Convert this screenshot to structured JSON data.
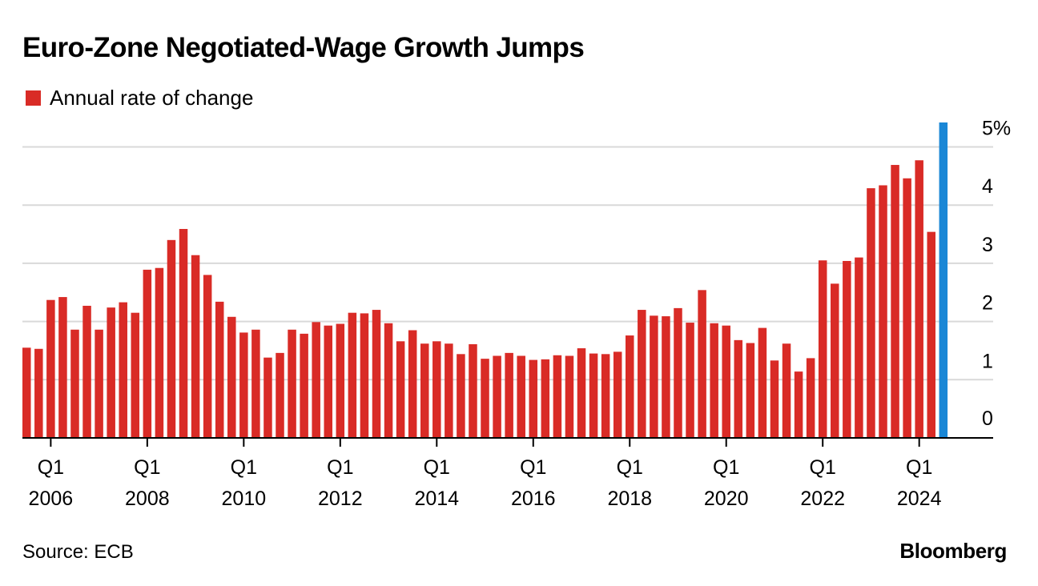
{
  "title": "Euro-Zone Negotiated-Wage Growth Jumps",
  "legend": {
    "label": "Annual rate of change",
    "color": "#d92b26"
  },
  "source": "Source: ECB",
  "brand": "Bloomberg",
  "colors": {
    "bar": "#d92b26",
    "highlight": "#1a87d6",
    "grid": "#d9d9d9",
    "axis": "#000000"
  },
  "chart_data": {
    "type": "bar",
    "title": "Euro-Zone Negotiated-Wage Growth Jumps",
    "xlabel": "",
    "ylabel": "",
    "ylim": [
      0,
      5
    ],
    "y_ticks": [
      {
        "value": 0,
        "label": "0"
      },
      {
        "value": 1,
        "label": "1"
      },
      {
        "value": 2,
        "label": "2"
      },
      {
        "value": 3,
        "label": "3"
      },
      {
        "value": 4,
        "label": "4"
      },
      {
        "value": 5,
        "label": "5%"
      }
    ],
    "grid": true,
    "first_period": "2005 Q3",
    "frequency": "quarterly",
    "x_ticks": [
      {
        "index": 2,
        "line1": "Q1",
        "line2": "2006"
      },
      {
        "index": 10,
        "line1": "Q1",
        "line2": "2008"
      },
      {
        "index": 18,
        "line1": "Q1",
        "line2": "2010"
      },
      {
        "index": 26,
        "line1": "Q1",
        "line2": "2012"
      },
      {
        "index": 34,
        "line1": "Q1",
        "line2": "2014"
      },
      {
        "index": 42,
        "line1": "Q1",
        "line2": "2016"
      },
      {
        "index": 50,
        "line1": "Q1",
        "line2": "2018"
      },
      {
        "index": 58,
        "line1": "Q1",
        "line2": "2020"
      },
      {
        "index": 66,
        "line1": "Q1",
        "line2": "2022"
      },
      {
        "index": 74,
        "line1": "Q1",
        "line2": "2024"
      }
    ],
    "series": [
      {
        "name": "Annual rate of change",
        "values": [
          1.55,
          1.53,
          2.37,
          2.42,
          1.86,
          2.27,
          1.86,
          2.24,
          2.33,
          2.15,
          2.89,
          2.92,
          3.4,
          3.59,
          3.14,
          2.8,
          2.34,
          2.08,
          1.81,
          1.86,
          1.38,
          1.46,
          1.86,
          1.79,
          1.99,
          1.93,
          1.96,
          2.15,
          2.14,
          2.2,
          1.97,
          1.66,
          1.85,
          1.62,
          1.66,
          1.62,
          1.44,
          1.61,
          1.36,
          1.41,
          1.46,
          1.41,
          1.34,
          1.35,
          1.42,
          1.41,
          1.54,
          1.45,
          1.44,
          1.48,
          1.76,
          2.2,
          2.1,
          2.09,
          2.23,
          1.98,
          2.54,
          1.97,
          1.93,
          1.68,
          1.63,
          1.89,
          1.33,
          1.62,
          1.14,
          1.37,
          3.05,
          2.65,
          3.04,
          3.1,
          4.29,
          4.34,
          4.69,
          4.46,
          4.77,
          3.54,
          5.42
        ],
        "highlight_index": 76
      }
    ]
  }
}
